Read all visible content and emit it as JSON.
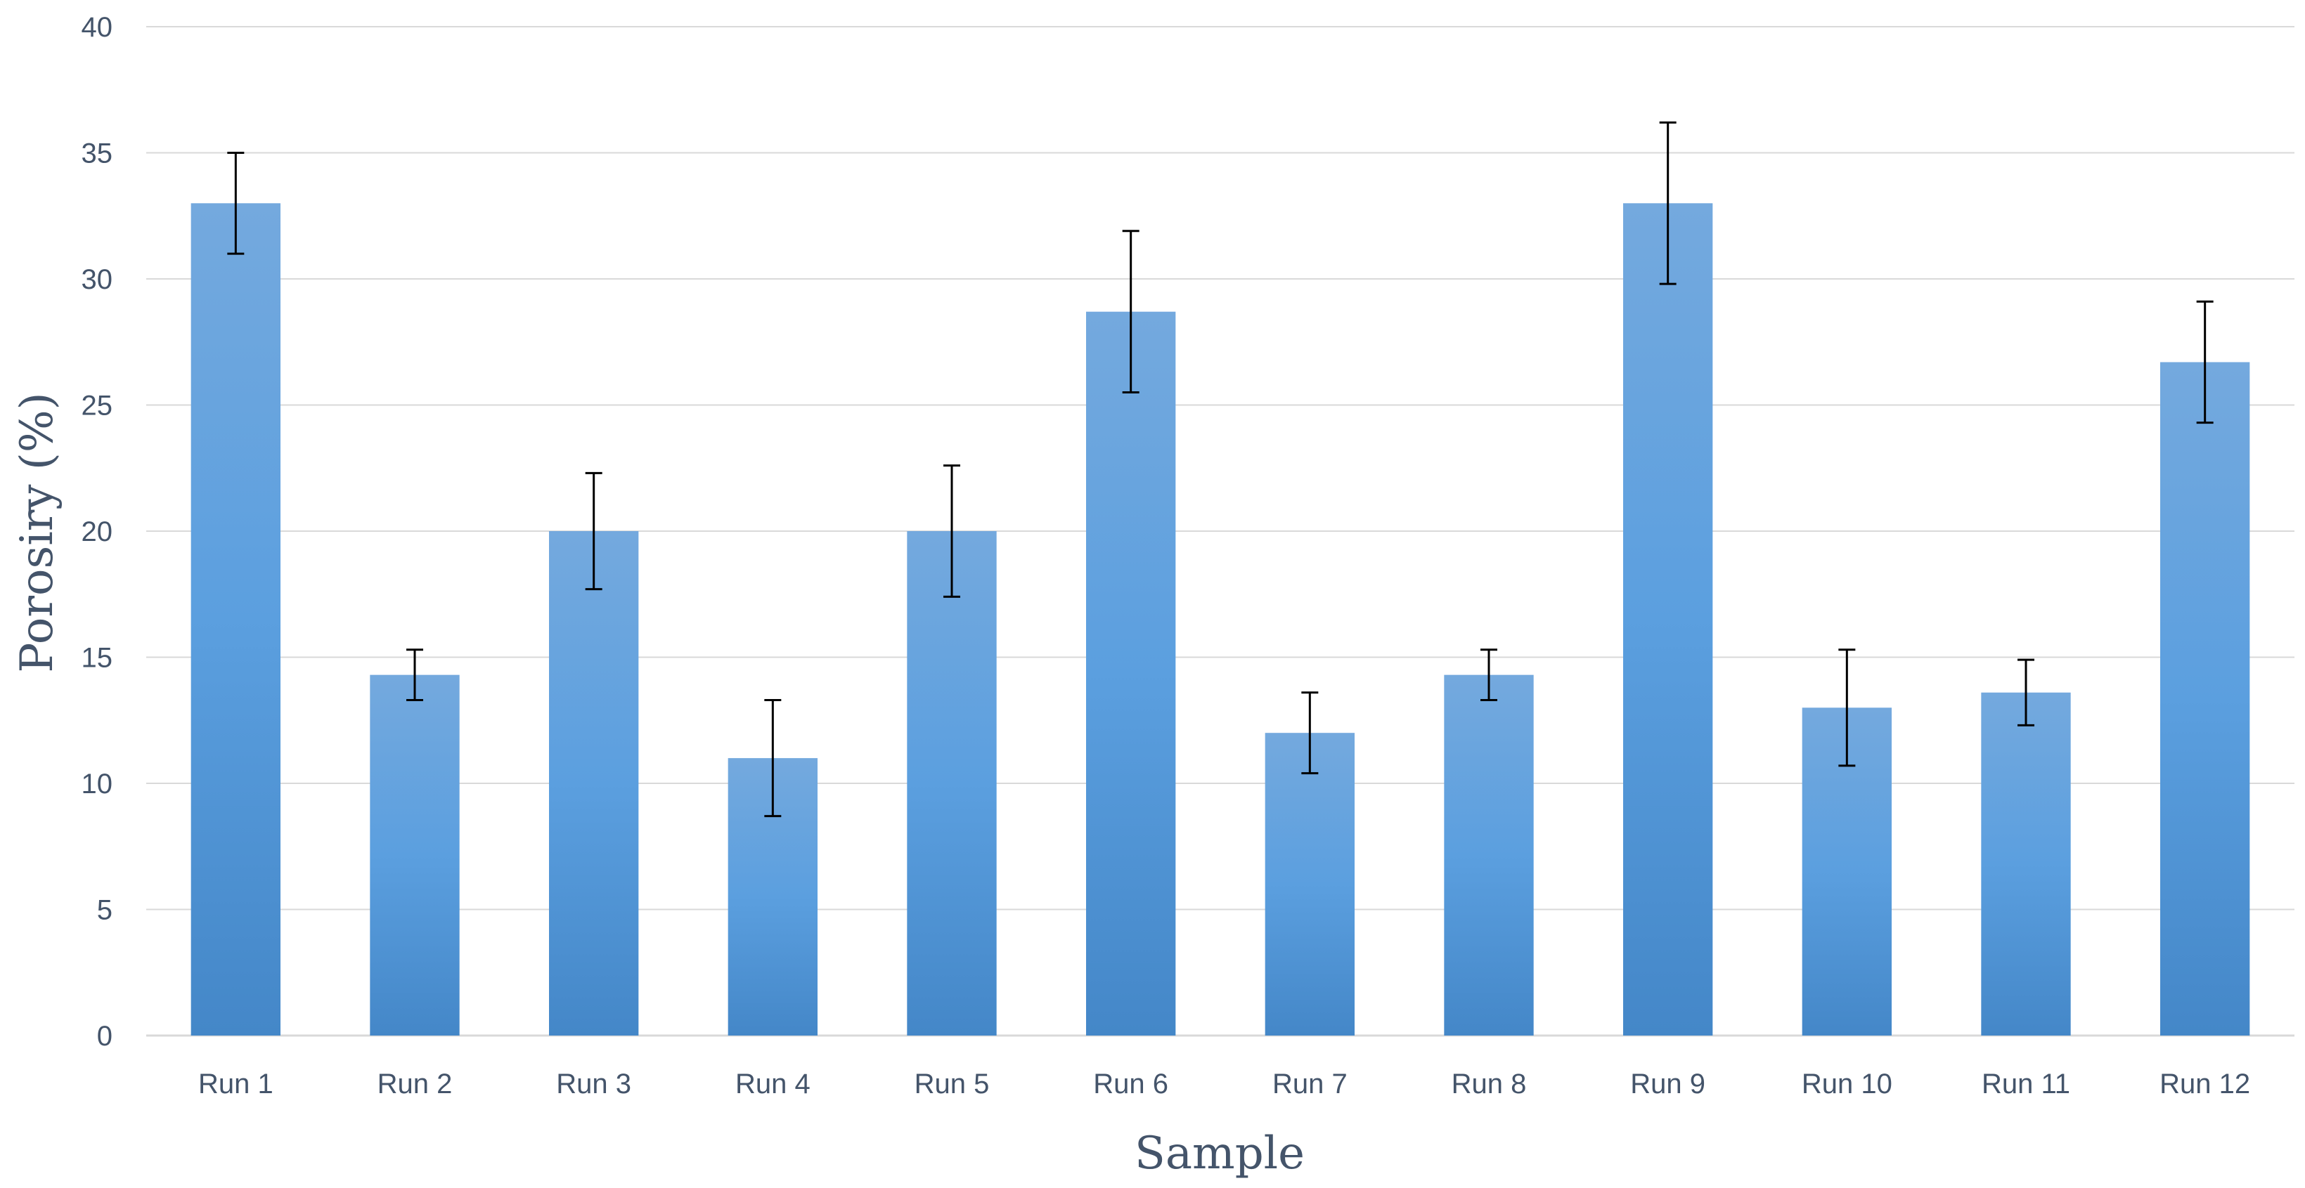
{
  "chart_data": {
    "type": "bar",
    "title": "",
    "xlabel": "Sample",
    "ylabel": "Porosiry (%)",
    "ylim": [
      0,
      40
    ],
    "yticks": [
      0,
      5,
      10,
      15,
      20,
      25,
      30,
      35,
      40
    ],
    "grid": true,
    "categories": [
      "Run 1",
      "Run 2",
      "Run 3",
      "Run 4",
      "Run 5",
      "Run 6",
      "Run 7",
      "Run 8",
      "Run 9",
      "Run 10",
      "Run 11",
      "Run 12"
    ],
    "values": [
      33,
      14.3,
      20,
      11,
      20,
      28.7,
      12,
      14.3,
      33,
      13,
      13.6,
      26.7
    ],
    "error": [
      2,
      1,
      2.3,
      2.3,
      2.6,
      3.2,
      1.6,
      1,
      3.2,
      2.3,
      1.3,
      2.4
    ],
    "colors": {
      "bar_light": "#74a9de",
      "bar_mid": "#5b9fdf",
      "bar_dark": "#4487c8",
      "grid": "#d9d9d9",
      "axis": "#d9d9d9",
      "text": "#44546a",
      "error_bar": "#000000"
    }
  }
}
